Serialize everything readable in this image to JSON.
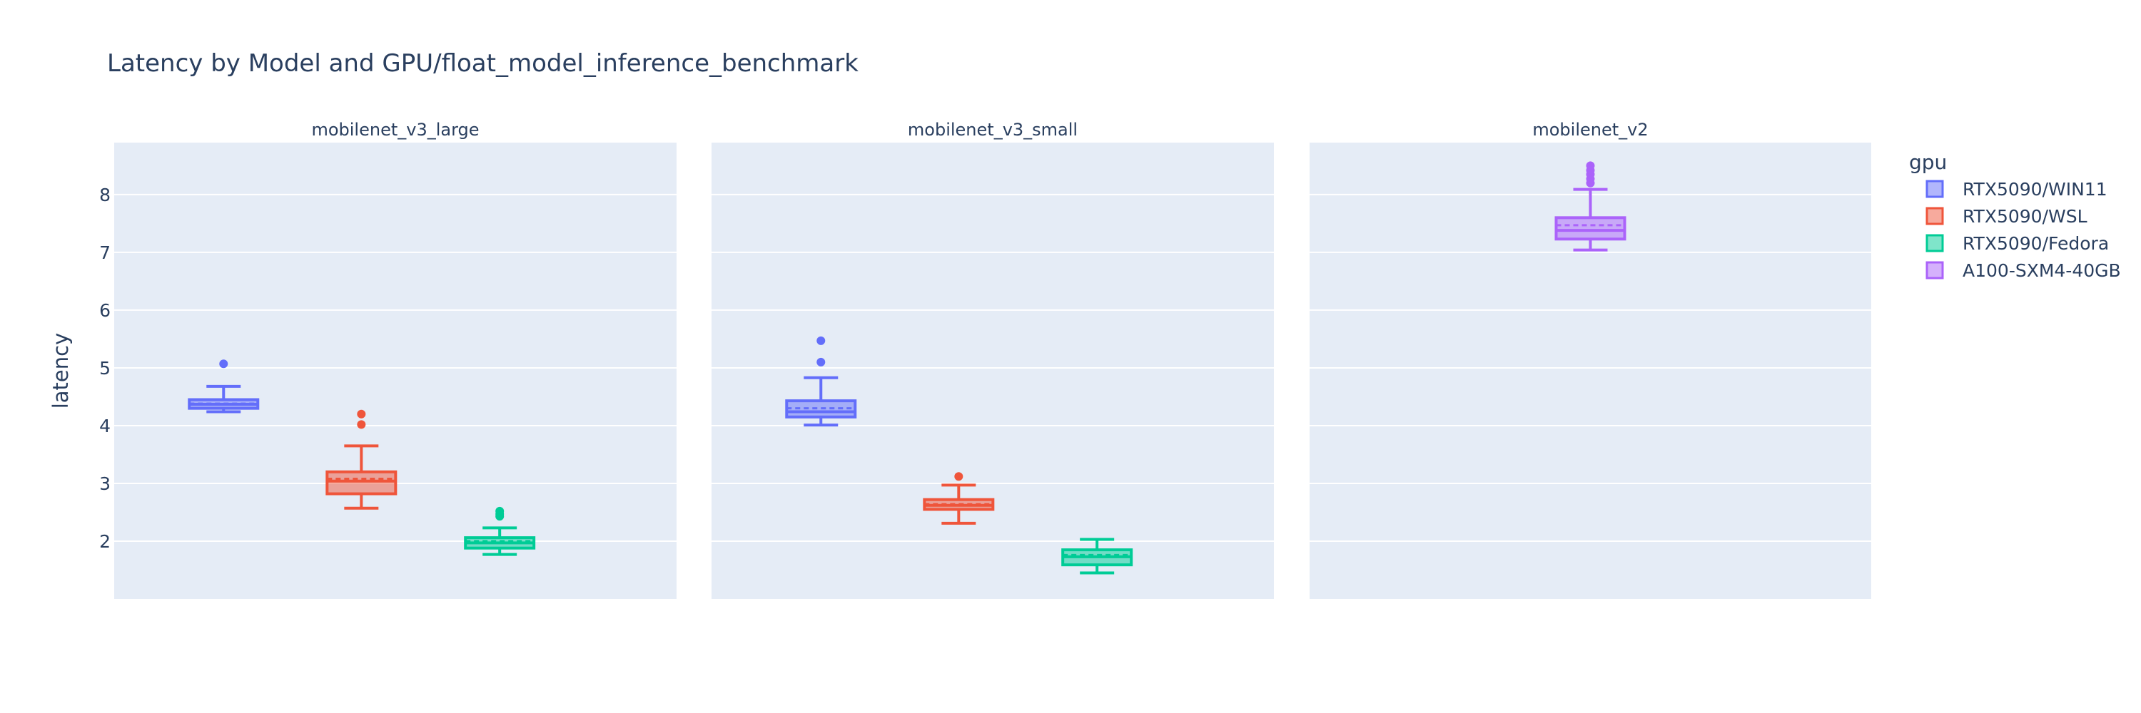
{
  "chart_data": {
    "type": "box",
    "title": "Latency by Model and GPU/float_model_inference_benchmark",
    "ylabel": "latency",
    "ylim": [
      1.0,
      8.9
    ],
    "yticks": [
      2,
      3,
      4,
      5,
      6,
      7,
      8
    ],
    "grid": true,
    "legend": {
      "title": "gpu",
      "placement": "right",
      "entries": [
        "RTX5090/WIN11",
        "RTX5090/WSL",
        "RTX5090/Fedora",
        "A100-SXM4-40GB"
      ]
    },
    "colors": {
      "RTX5090/WIN11": "#636efa",
      "RTX5090/WSL": "#ef553b",
      "RTX5090/Fedora": "#00cc96",
      "A100-SXM4-40GB": "#ab63fa"
    },
    "panels": [
      {
        "title": "mobilenet_v3_large",
        "boxes": [
          {
            "gpu": "RTX5090/WIN11",
            "q1": 4.3,
            "median": 4.37,
            "q3": 4.45,
            "mean": 4.38,
            "lower_fence": 4.24,
            "upper_fence": 4.68,
            "outliers": [
              5.07
            ]
          },
          {
            "gpu": "RTX5090/WSL",
            "q1": 2.82,
            "median": 3.04,
            "q3": 3.2,
            "mean": 3.08,
            "lower_fence": 2.57,
            "upper_fence": 3.65,
            "outliers": [
              4.2,
              4.02
            ]
          },
          {
            "gpu": "RTX5090/Fedora",
            "q1": 1.88,
            "median": 1.97,
            "q3": 2.06,
            "mean": 2.0,
            "lower_fence": 1.77,
            "upper_fence": 2.23,
            "outliers": [
              2.43,
              2.47,
              2.52
            ]
          }
        ]
      },
      {
        "title": "mobilenet_v3_small",
        "boxes": [
          {
            "gpu": "RTX5090/WIN11",
            "q1": 4.15,
            "median": 4.24,
            "q3": 4.43,
            "mean": 4.3,
            "lower_fence": 4.01,
            "upper_fence": 4.83,
            "outliers": [
              5.1,
              5.47
            ]
          },
          {
            "gpu": "RTX5090/WSL",
            "q1": 2.55,
            "median": 2.62,
            "q3": 2.72,
            "mean": 2.64,
            "lower_fence": 2.31,
            "upper_fence": 2.97,
            "outliers": [
              3.12
            ]
          },
          {
            "gpu": "RTX5090/Fedora",
            "q1": 1.59,
            "median": 1.73,
            "q3": 1.85,
            "mean": 1.76,
            "lower_fence": 1.45,
            "upper_fence": 2.03,
            "outliers": []
          }
        ]
      },
      {
        "title": "mobilenet_v2",
        "boxes": [
          {
            "gpu": "A100-SXM4-40GB",
            "q1": 7.23,
            "median": 7.38,
            "q3": 7.6,
            "mean": 7.47,
            "lower_fence": 7.04,
            "upper_fence": 8.09,
            "outliers": [
              8.2,
              8.27,
              8.35,
              8.42,
              8.5
            ]
          }
        ]
      }
    ]
  }
}
